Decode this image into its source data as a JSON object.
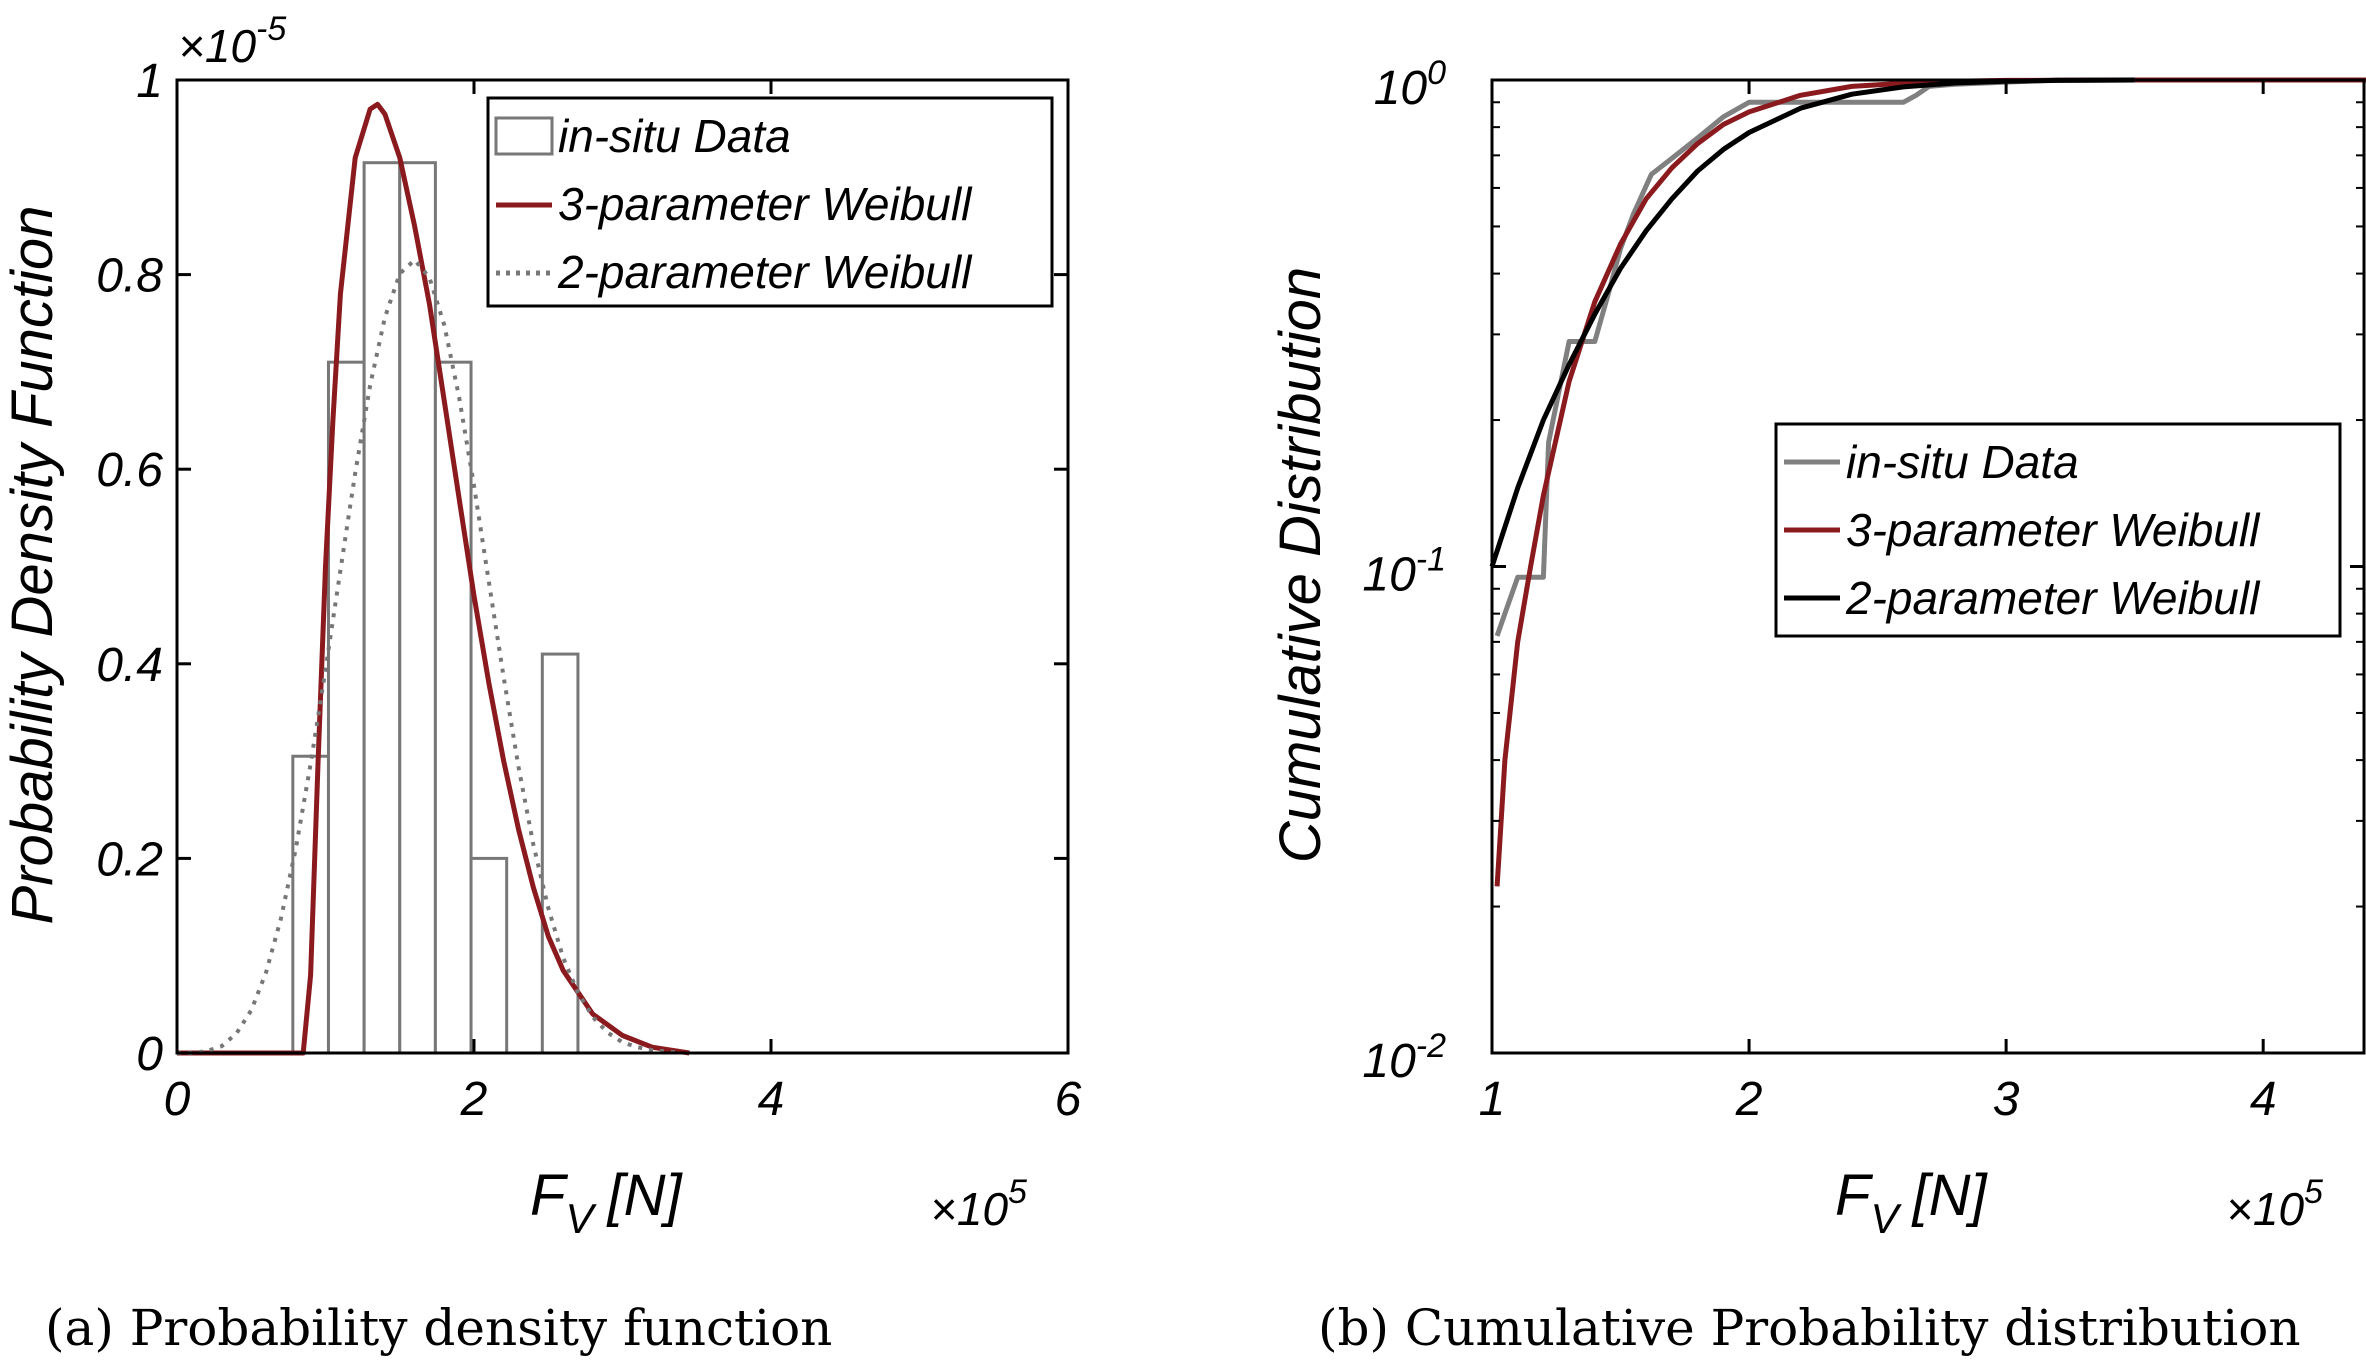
{
  "colors": {
    "insitu_bar": "#777777",
    "insitu_line": "#808080",
    "weibull3": "#8b1a1e",
    "weibull2_dotted": "#777777",
    "weibull2_solid": "#000000"
  },
  "chart_data": [
    {
      "type": "bar",
      "caption": "(a) Probability density function",
      "xlabel_main": "F",
      "xlabel_sub": "V",
      "xlabel_unit": "[N]",
      "ylabel": "Probability Density Function",
      "x_multiplier": "×10",
      "x_multiplier_exp": "5",
      "y_multiplier": "×10",
      "y_multiplier_exp": "-5",
      "xlim": [
        0,
        6
      ],
      "ylim": [
        0,
        1
      ],
      "x_ticks": [
        0,
        2,
        4,
        6
      ],
      "x_tick_labels": [
        "0",
        "2",
        "4",
        "6"
      ],
      "y_ticks": [
        0,
        0.2,
        0.4,
        0.6,
        0.8,
        1
      ],
      "y_tick_labels": [
        "0",
        "0.2",
        "0.4",
        "0.6",
        "0.8",
        "1"
      ],
      "legend_position": "top-right",
      "legend": [
        "in-situ Data",
        "3-parameter Weibull",
        "2-parameter Weibull"
      ],
      "histogram": {
        "name": "in-situ Data",
        "bin_edges": [
          0.78,
          1.02,
          1.26,
          1.5,
          1.74,
          1.98,
          2.22,
          2.46,
          2.7
        ],
        "values": [
          0.305,
          0.71,
          0.915,
          0.915,
          0.71,
          0.2,
          0,
          0.41
        ]
      },
      "series": [
        {
          "name": "3-parameter Weibull",
          "style": "solid",
          "x": [
            0,
            0.85,
            0.9,
            0.95,
            1.0,
            1.05,
            1.1,
            1.2,
            1.3,
            1.35,
            1.4,
            1.5,
            1.6,
            1.7,
            1.8,
            1.9,
            2.0,
            2.1,
            2.2,
            2.3,
            2.4,
            2.5,
            2.6,
            2.8,
            3.0,
            3.2,
            3.45
          ],
          "y": [
            0,
            0,
            0.08,
            0.3,
            0.5,
            0.65,
            0.78,
            0.92,
            0.97,
            0.975,
            0.965,
            0.92,
            0.85,
            0.77,
            0.67,
            0.57,
            0.47,
            0.38,
            0.3,
            0.23,
            0.17,
            0.12,
            0.085,
            0.04,
            0.018,
            0.006,
            0.0
          ]
        },
        {
          "name": "2-parameter Weibull",
          "style": "dotted",
          "x": [
            0.0,
            0.1,
            0.2,
            0.3,
            0.4,
            0.5,
            0.6,
            0.7,
            0.8,
            0.9,
            1.0,
            1.1,
            1.2,
            1.3,
            1.4,
            1.5,
            1.6,
            1.7,
            1.8,
            1.9,
            2.0,
            2.1,
            2.2,
            2.3,
            2.4,
            2.5,
            2.6,
            2.7,
            2.8,
            2.9,
            3.0,
            3.1,
            3.2,
            3.4
          ],
          "y": [
            0.0,
            0.0,
            0.002,
            0.007,
            0.02,
            0.044,
            0.083,
            0.138,
            0.21,
            0.297,
            0.394,
            0.496,
            0.596,
            0.686,
            0.756,
            0.801,
            0.815,
            0.797,
            0.748,
            0.674,
            0.583,
            0.484,
            0.386,
            0.294,
            0.214,
            0.149,
            0.098,
            0.062,
            0.037,
            0.021,
            0.011,
            0.006,
            0.003,
            0.0
          ]
        }
      ]
    },
    {
      "type": "line",
      "caption": "(b) Cumulative Probability distribution",
      "xlabel_main": "F",
      "xlabel_sub": "V",
      "xlabel_unit": "[N]",
      "ylabel": "Cumulative Distribution",
      "x_multiplier": "×10",
      "x_multiplier_exp": "5",
      "xlim": [
        1,
        4.4
      ],
      "ylim": [
        0.01,
        1
      ],
      "y_scale": "log",
      "x_ticks": [
        1,
        2,
        3,
        4
      ],
      "x_tick_labels": [
        "1",
        "2",
        "3",
        "4"
      ],
      "y_ticks": [
        0.01,
        0.1,
        1
      ],
      "y_tick_bases": [
        "10",
        "10",
        "10"
      ],
      "y_tick_exps": [
        "-2",
        "-1",
        "0"
      ],
      "legend_position": "center-right",
      "legend": [
        "in-situ Data",
        "3-parameter Weibull",
        "2-parameter Weibull"
      ],
      "series": [
        {
          "name": "in-situ Data",
          "x": [
            1.02,
            1.05,
            1.1,
            1.2,
            1.22,
            1.3,
            1.35,
            1.4,
            1.45,
            1.5,
            1.55,
            1.62,
            1.7,
            1.8,
            1.9,
            2.0,
            2.1,
            2.2,
            2.3,
            2.4,
            2.5,
            2.6,
            2.65,
            2.7,
            2.8,
            3.0,
            3.2,
            3.5
          ],
          "y": [
            0.072,
            0.08,
            0.095,
            0.095,
            0.18,
            0.29,
            0.29,
            0.29,
            0.36,
            0.45,
            0.53,
            0.64,
            0.69,
            0.76,
            0.84,
            0.9,
            0.9,
            0.9,
            0.9,
            0.9,
            0.9,
            0.9,
            0.93,
            0.97,
            0.98,
            0.99,
            1.0,
            1.0
          ]
        },
        {
          "name": "3-parameter Weibull",
          "x": [
            1.02,
            1.05,
            1.1,
            1.15,
            1.2,
            1.3,
            1.4,
            1.5,
            1.6,
            1.7,
            1.8,
            1.9,
            2.0,
            2.2,
            2.4,
            2.6,
            2.8,
            3.0,
            3.5,
            4.0,
            4.4
          ],
          "y": [
            0.022,
            0.04,
            0.07,
            0.1,
            0.14,
            0.24,
            0.35,
            0.46,
            0.57,
            0.66,
            0.74,
            0.81,
            0.86,
            0.93,
            0.97,
            0.985,
            0.994,
            0.998,
            1.0,
            1.0,
            1.0
          ]
        },
        {
          "name": "2-parameter Weibull",
          "x": [
            1.0,
            1.1,
            1.2,
            1.3,
            1.4,
            1.5,
            1.6,
            1.7,
            1.8,
            1.9,
            2.0,
            2.2,
            2.4,
            2.6,
            2.8,
            3.0,
            3.2,
            3.5
          ],
          "y": [
            0.1,
            0.145,
            0.2,
            0.26,
            0.33,
            0.41,
            0.49,
            0.57,
            0.65,
            0.72,
            0.78,
            0.875,
            0.935,
            0.968,
            0.986,
            0.994,
            0.998,
            1.0
          ]
        }
      ]
    }
  ]
}
